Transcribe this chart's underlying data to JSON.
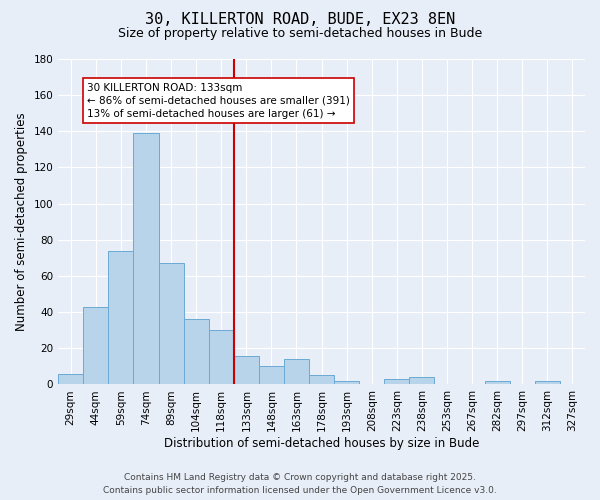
{
  "title": "30, KILLERTON ROAD, BUDE, EX23 8EN",
  "subtitle": "Size of property relative to semi-detached houses in Bude",
  "xlabel": "Distribution of semi-detached houses by size in Bude",
  "ylabel": "Number of semi-detached properties",
  "bin_labels": [
    "29sqm",
    "44sqm",
    "59sqm",
    "74sqm",
    "89sqm",
    "104sqm",
    "118sqm",
    "133sqm",
    "148sqm",
    "163sqm",
    "178sqm",
    "193sqm",
    "208sqm",
    "223sqm",
    "238sqm",
    "253sqm",
    "267sqm",
    "282sqm",
    "297sqm",
    "312sqm",
    "327sqm"
  ],
  "bar_values": [
    6,
    43,
    74,
    139,
    67,
    36,
    30,
    16,
    10,
    14,
    5,
    2,
    0,
    3,
    4,
    0,
    0,
    2,
    0,
    2,
    0
  ],
  "bar_color": "#b8d4ea",
  "bar_edge_color": "#6aaad4",
  "vline_x_idx": 7,
  "vline_color": "#cc0000",
  "annotation_title": "30 KILLERTON ROAD: 133sqm",
  "annotation_line1": "← 86% of semi-detached houses are smaller (391)",
  "annotation_line2": "13% of semi-detached houses are larger (61) →",
  "annotation_box_color": "#ffffff",
  "annotation_box_edge": "#cc0000",
  "ylim": [
    0,
    180
  ],
  "yticks": [
    0,
    20,
    40,
    60,
    80,
    100,
    120,
    140,
    160,
    180
  ],
  "bg_color": "#e8eef8",
  "footer1": "Contains HM Land Registry data © Crown copyright and database right 2025.",
  "footer2": "Contains public sector information licensed under the Open Government Licence v3.0.",
  "title_fontsize": 11,
  "subtitle_fontsize": 9,
  "axis_label_fontsize": 8.5,
  "tick_fontsize": 7.5,
  "annotation_fontsize": 7.5,
  "footer_fontsize": 6.5
}
